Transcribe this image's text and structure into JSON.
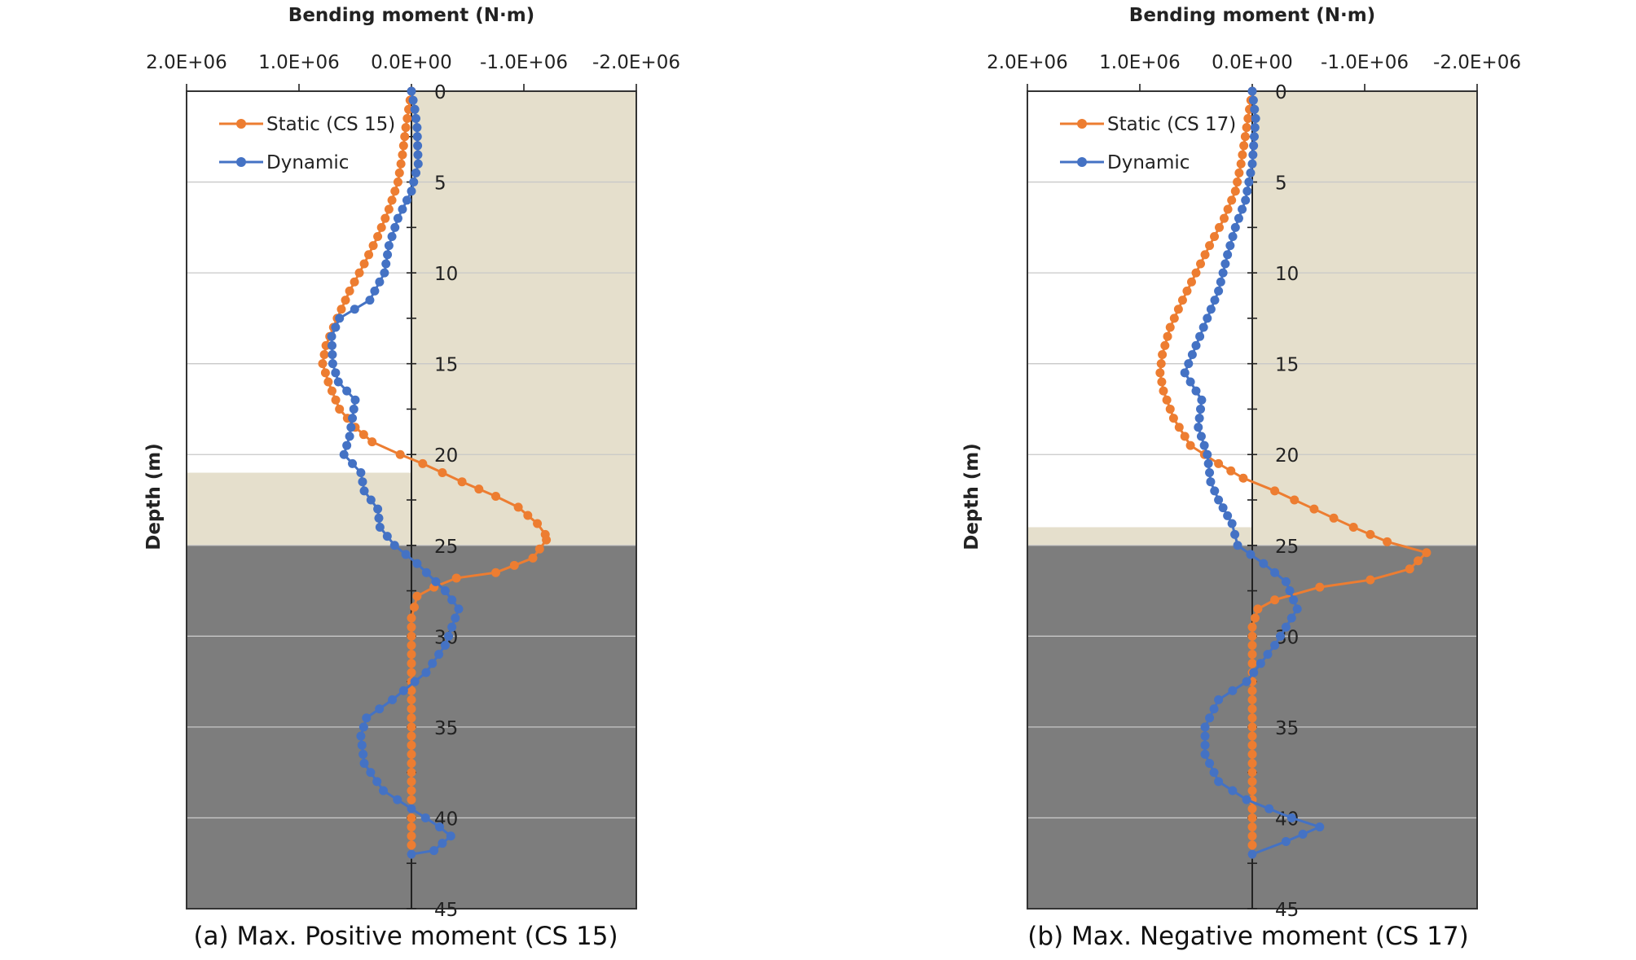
{
  "chart_data": [
    {
      "type": "line",
      "xlabel": "Bending moment (N·m)",
      "ylabel": "Depth (m)",
      "caption": "(a) Max. Positive moment (CS 15)",
      "x_reversed": true,
      "xlim": [
        2000000,
        -2000000
      ],
      "ylim": [
        0,
        45
      ],
      "x_tick_labels": [
        "2.0E+06",
        "1.0E+06",
        "0.0E+00",
        "-1.0E+06",
        "-2.0E+06"
      ],
      "x_tick_values": [
        2000000,
        1000000,
        0,
        -1000000,
        -2000000
      ],
      "y_tick_labels": [
        "0",
        "5",
        "10",
        "15",
        "20",
        "25",
        "30",
        "35",
        "40",
        "45"
      ],
      "y_tick_values": [
        0,
        5,
        10,
        15,
        20,
        25,
        30,
        35,
        40,
        45
      ],
      "grid": true,
      "legend_position": "top-left",
      "regions": [
        {
          "kind": "upper-layer",
          "x_from": 0,
          "x_to": -2000000,
          "depth_from": 0,
          "depth_to": 25,
          "color": "#e5dfcc"
        },
        {
          "kind": "upper-layer",
          "x_from": 2000000,
          "x_to": 0,
          "depth_from": 21,
          "depth_to": 25,
          "color": "#e5dfcc"
        },
        {
          "kind": "lower-layer",
          "x_from": 2000000,
          "x_to": -2000000,
          "depth_from": 25,
          "depth_to": 45,
          "color": "#7d7d7d"
        }
      ],
      "series": [
        {
          "name": "Static (CS 15)",
          "color": "#ed7d31",
          "points": [
            [
              0,
              0
            ],
            [
              50000,
              2
            ],
            [
              80000,
              3.5
            ],
            [
              120000,
              5
            ],
            [
              200000,
              6.5
            ],
            [
              300000,
              8
            ],
            [
              420000,
              9.5
            ],
            [
              550000,
              11
            ],
            [
              660000,
              12.5
            ],
            [
              760000,
              14
            ],
            [
              790000,
              15
            ],
            [
              740000,
              16
            ],
            [
              640000,
              17.5
            ],
            [
              500000,
              18.5
            ],
            [
              350000,
              19.3
            ],
            [
              100000,
              20
            ],
            [
              -100000,
              20.5
            ],
            [
              -450000,
              21.5
            ],
            [
              -750000,
              22.3
            ],
            [
              -950000,
              22.9
            ],
            [
              -1120000,
              23.8
            ],
            [
              -1190000,
              24.4
            ],
            [
              -1200000,
              24.7
            ],
            [
              -1080000,
              25.7
            ],
            [
              -750000,
              26.5
            ],
            [
              -400000,
              26.8
            ],
            [
              -200000,
              27.3
            ],
            [
              -50000,
              27.8
            ],
            [
              0,
              29
            ],
            [
              0,
              35
            ],
            [
              0,
              42
            ]
          ]
        },
        {
          "name": "Dynamic",
          "color": "#4472c4",
          "points": [
            [
              0,
              0
            ],
            [
              -30000,
              1
            ],
            [
              -50000,
              2
            ],
            [
              -60000,
              4
            ],
            [
              0,
              5.5
            ],
            [
              120000,
              7
            ],
            [
              200000,
              8.5
            ],
            [
              240000,
              10
            ],
            [
              370000,
              11.5
            ],
            [
              640000,
              12.5
            ],
            [
              710000,
              13.5
            ],
            [
              700000,
              15
            ],
            [
              650000,
              16
            ],
            [
              500000,
              17
            ],
            [
              550000,
              19
            ],
            [
              600000,
              20
            ],
            [
              450000,
              21
            ],
            [
              420000,
              22
            ],
            [
              300000,
              23
            ],
            [
              280000,
              24
            ],
            [
              150000,
              25
            ],
            [
              -50000,
              26
            ],
            [
              -300000,
              27.5
            ],
            [
              -420000,
              28.5
            ],
            [
              -300000,
              30.5
            ],
            [
              -130000,
              32
            ],
            [
              170000,
              33.5
            ],
            [
              400000,
              34.5
            ],
            [
              450000,
              35.5
            ],
            [
              420000,
              37
            ],
            [
              250000,
              38.5
            ],
            [
              0,
              39.5
            ],
            [
              -250000,
              40.5
            ],
            [
              -350000,
              41
            ],
            [
              -200000,
              41.8
            ],
            [
              0,
              42
            ]
          ]
        }
      ]
    },
    {
      "type": "line",
      "xlabel": "Bending moment (N·m)",
      "ylabel": "Depth (m)",
      "caption": "(b) Max. Negative moment (CS 17)",
      "x_reversed": true,
      "xlim": [
        2000000,
        -2000000
      ],
      "ylim": [
        0,
        45
      ],
      "x_tick_labels": [
        "2.0E+06",
        "1.0E+06",
        "0.0E+00",
        "-1.0E+06",
        "-2.0E+06"
      ],
      "x_tick_values": [
        2000000,
        1000000,
        0,
        -1000000,
        -2000000
      ],
      "y_tick_labels": [
        "0",
        "5",
        "10",
        "15",
        "20",
        "25",
        "30",
        "35",
        "40",
        "45"
      ],
      "y_tick_values": [
        0,
        5,
        10,
        15,
        20,
        25,
        30,
        35,
        40,
        45
      ],
      "grid": true,
      "legend_position": "top-left",
      "regions": [
        {
          "kind": "upper-layer",
          "x_from": 0,
          "x_to": -2000000,
          "depth_from": 0,
          "depth_to": 25,
          "color": "#e5dfcc"
        },
        {
          "kind": "upper-layer",
          "x_from": 2000000,
          "x_to": 0,
          "depth_from": 24,
          "depth_to": 25,
          "color": "#e5dfcc"
        },
        {
          "kind": "lower-layer",
          "x_from": 2000000,
          "x_to": -2000000,
          "depth_from": 25,
          "depth_to": 45,
          "color": "#7d7d7d"
        }
      ],
      "series": [
        {
          "name": "Static (CS 17)",
          "color": "#ed7d31",
          "points": [
            [
              0,
              0
            ],
            [
              50000,
              2
            ],
            [
              100000,
              4
            ],
            [
              150000,
              5.5
            ],
            [
              250000,
              7
            ],
            [
              380000,
              8.5
            ],
            [
              500000,
              10
            ],
            [
              620000,
              11.5
            ],
            [
              730000,
              13
            ],
            [
              800000,
              14.5
            ],
            [
              820000,
              15.5
            ],
            [
              790000,
              16.5
            ],
            [
              700000,
              18
            ],
            [
              550000,
              19.5
            ],
            [
              300000,
              20.5
            ],
            [
              80000,
              21.3
            ],
            [
              -200000,
              22
            ],
            [
              -550000,
              23
            ],
            [
              -900000,
              24
            ],
            [
              -1200000,
              24.8
            ],
            [
              -1550000,
              25.4
            ],
            [
              -1400000,
              26.3
            ],
            [
              -1050000,
              26.9
            ],
            [
              -600000,
              27.3
            ],
            [
              -200000,
              28
            ],
            [
              -50000,
              28.5
            ],
            [
              0,
              29.5
            ],
            [
              0,
              35
            ],
            [
              0,
              42
            ]
          ]
        },
        {
          "name": "Dynamic",
          "color": "#4472c4",
          "points": [
            [
              0,
              0
            ],
            [
              -30000,
              1.5
            ],
            [
              0,
              4
            ],
            [
              60000,
              6
            ],
            [
              150000,
              7.5
            ],
            [
              220000,
              9
            ],
            [
              300000,
              11
            ],
            [
              400000,
              12.5
            ],
            [
              500000,
              14
            ],
            [
              600000,
              15.5
            ],
            [
              450000,
              17
            ],
            [
              480000,
              18.5
            ],
            [
              400000,
              20
            ],
            [
              370000,
              21.5
            ],
            [
              300000,
              22.5
            ],
            [
              180000,
              23.8
            ],
            [
              130000,
              25
            ],
            [
              -100000,
              26
            ],
            [
              -300000,
              27
            ],
            [
              -400000,
              28.5
            ],
            [
              -200000,
              30.5
            ],
            [
              50000,
              32.5
            ],
            [
              300000,
              33.5
            ],
            [
              420000,
              35
            ],
            [
              420000,
              36.5
            ],
            [
              300000,
              38
            ],
            [
              50000,
              39
            ],
            [
              -350000,
              40
            ],
            [
              -600000,
              40.5
            ],
            [
              -300000,
              41.3
            ],
            [
              0,
              42
            ]
          ]
        }
      ]
    }
  ]
}
